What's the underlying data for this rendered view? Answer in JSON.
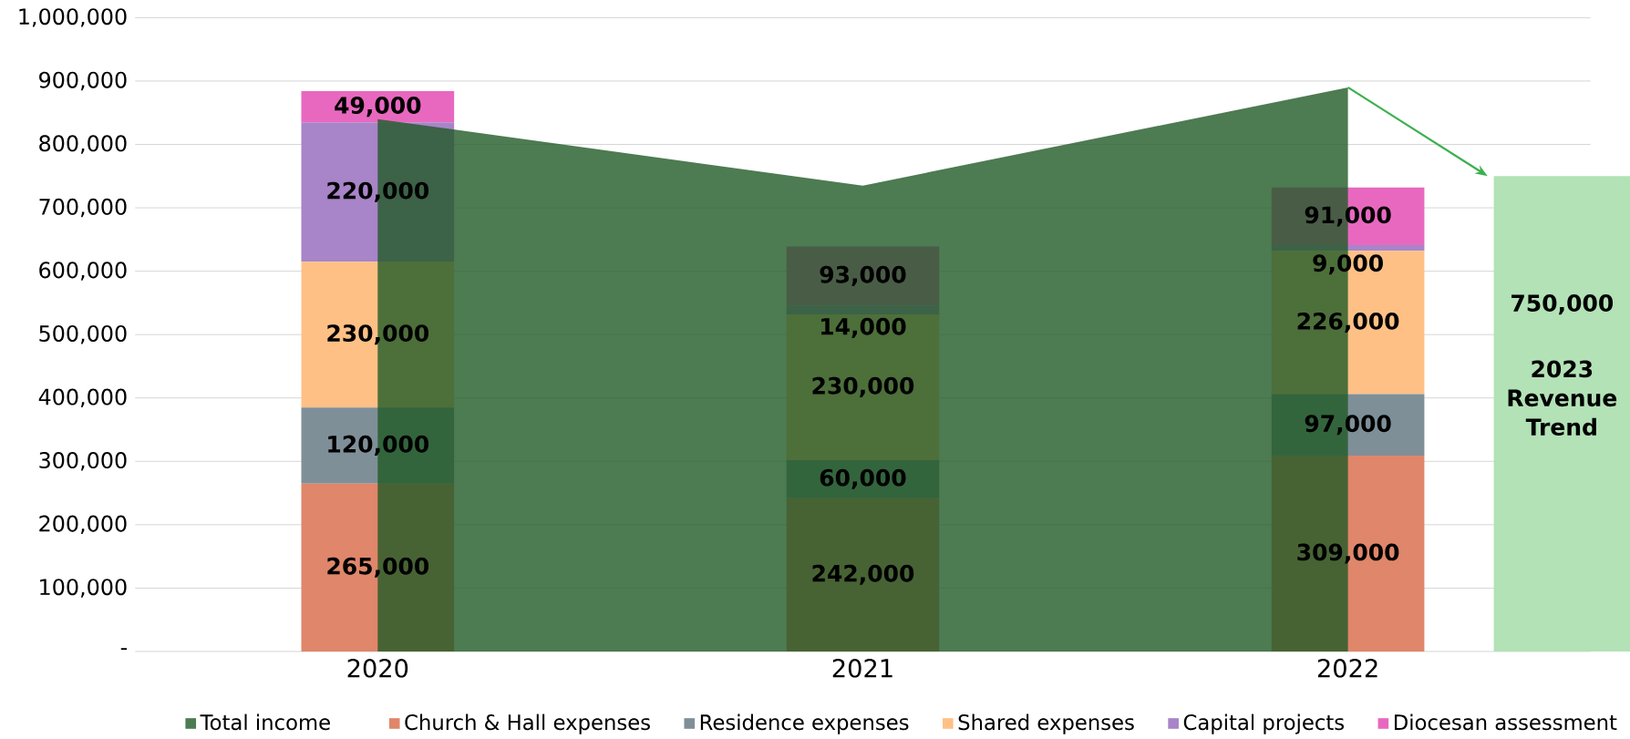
{
  "chart_data": [
    {
      "type": "bar",
      "stacked": true,
      "categories": [
        "2020",
        "2021",
        "2022"
      ],
      "series": [
        {
          "name": "Church & Hall expenses",
          "color": "#e0866a",
          "values": [
            265000,
            242000,
            309000
          ],
          "value_labels": [
            "265,000",
            "242,000",
            "309,000"
          ]
        },
        {
          "name": "Residence expenses",
          "color": "#7f8f98",
          "values": [
            120000,
            60000,
            97000
          ],
          "value_labels": [
            "120,000",
            "60,000",
            "97,000"
          ]
        },
        {
          "name": "Shared expenses",
          "color": "#ffc085",
          "values": [
            230000,
            230000,
            226000
          ],
          "value_labels": [
            "230,000",
            "230,000",
            "226,000"
          ]
        },
        {
          "name": "Capital projects",
          "color": "#a884c8",
          "values": [
            220000,
            14000,
            9000
          ],
          "value_labels": [
            "220,000",
            "14,000",
            "9,000"
          ]
        },
        {
          "name": "Diocesan assessment",
          "color": "#e868c0",
          "values": [
            49000,
            93000,
            91000
          ],
          "value_labels": [
            "49,000",
            "93,000",
            "91,000"
          ]
        }
      ],
      "ylim": [
        0,
        1000000
      ],
      "yticks": [
        {
          "value": 0,
          "label": "-"
        },
        {
          "value": 100000,
          "label": "100,000"
        },
        {
          "value": 200000,
          "label": "200,000"
        },
        {
          "value": 300000,
          "label": "300,000"
        },
        {
          "value": 400000,
          "label": "400,000"
        },
        {
          "value": 500000,
          "label": "500,000"
        },
        {
          "value": 600000,
          "label": "600,000"
        },
        {
          "value": 700000,
          "label": "700,000"
        },
        {
          "value": 800000,
          "label": "800,000"
        },
        {
          "value": 900000,
          "label": "900,000"
        },
        {
          "value": 1000000,
          "label": "1,000,000"
        }
      ],
      "grid": "y",
      "legend": "bottom"
    },
    {
      "type": "area",
      "categories": [
        "2020",
        "2021",
        "2022"
      ],
      "series": [
        {
          "name": "Total income",
          "color": "#215a27",
          "values": [
            840000,
            735000,
            890000
          ]
        }
      ],
      "ylim": [
        0,
        1000000
      ],
      "tick_labels": false,
      "legend": "bottom"
    },
    {
      "type": "bar",
      "categories": [
        null
      ],
      "values": [
        750000
      ],
      "value_labels": [
        "750,000"
      ],
      "color": "#b2e2b6",
      "ylim": [
        0,
        1000000
      ],
      "tick_labels": false,
      "annotations": [
        "2023 Revenue Trend"
      ]
    }
  ]
}
